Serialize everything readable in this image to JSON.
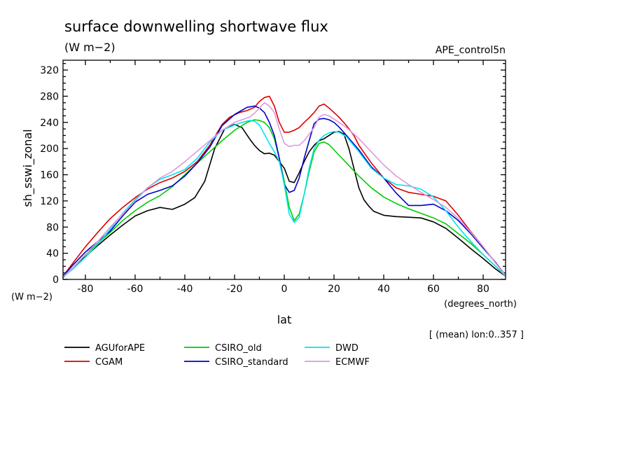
{
  "chart_data": {
    "type": "line",
    "title": "surface downwelling shortwave flux",
    "units": "(W m−2)",
    "run_label": "APE_control5n",
    "ylabel": "sh_sswi_zonal",
    "yunits": "(W m−2)",
    "xlabel": "lat",
    "xunits": "(degrees_north)",
    "note": "[ (mean) lon:0..357 ]",
    "xlim": [
      -89,
      89
    ],
    "ylim": [
      0,
      335
    ],
    "xticks": [
      -80,
      -60,
      -40,
      -20,
      0,
      20,
      40,
      60,
      80
    ],
    "yticks": [
      0,
      40,
      80,
      120,
      160,
      200,
      240,
      280,
      320
    ],
    "series": [
      {
        "name": "AGUforAPE",
        "color": "#000000",
        "x": [
          -89,
          -85,
          -80,
          -75,
          -70,
          -65,
          -60,
          -55,
          -50,
          -45,
          -40,
          -36,
          -32,
          -28,
          -24,
          -20,
          -17,
          -14,
          -12,
          -10,
          -8,
          -6,
          -4,
          -2,
          0,
          2,
          4,
          6,
          8,
          10,
          12,
          14,
          16,
          18,
          20,
          22,
          24,
          26,
          28,
          30,
          32,
          34,
          36,
          40,
          45,
          50,
          55,
          60,
          65,
          70,
          75,
          80,
          85,
          89
        ],
        "y": [
          3,
          18,
          35,
          52,
          68,
          83,
          97,
          105,
          110,
          107,
          115,
          125,
          150,
          200,
          230,
          237,
          232,
          215,
          205,
          197,
          192,
          193,
          190,
          180,
          170,
          150,
          148,
          163,
          180,
          195,
          205,
          212,
          215,
          220,
          225,
          226,
          222,
          200,
          170,
          140,
          122,
          112,
          104,
          98,
          96,
          95,
          94,
          88,
          78,
          63,
          47,
          32,
          16,
          5
        ]
      },
      {
        "name": "CGAM",
        "color": "#dd0000",
        "x": [
          -89,
          -85,
          -80,
          -75,
          -70,
          -65,
          -60,
          -55,
          -50,
          -45,
          -40,
          -35,
          -30,
          -25,
          -22,
          -18,
          -15,
          -12,
          -10,
          -8,
          -6,
          -4,
          -2,
          0,
          2,
          4,
          6,
          8,
          10,
          12,
          14,
          16,
          18,
          20,
          22,
          25,
          28,
          30,
          35,
          40,
          45,
          50,
          55,
          60,
          65,
          70,
          75,
          80,
          85,
          89
        ],
        "y": [
          5,
          25,
          50,
          72,
          93,
          110,
          125,
          138,
          148,
          155,
          165,
          180,
          205,
          237,
          248,
          255,
          258,
          263,
          272,
          278,
          280,
          265,
          240,
          225,
          225,
          228,
          232,
          240,
          247,
          255,
          265,
          268,
          262,
          255,
          248,
          235,
          220,
          205,
          178,
          155,
          140,
          133,
          130,
          127,
          120,
          98,
          73,
          50,
          25,
          6
        ]
      },
      {
        "name": "CSIRO_old",
        "color": "#00cc00",
        "x": [
          -89,
          -85,
          -80,
          -75,
          -70,
          -65,
          -60,
          -55,
          -50,
          -45,
          -40,
          -35,
          -30,
          -25,
          -20,
          -15,
          -12,
          -10,
          -8,
          -6,
          -4,
          -2,
          0,
          2,
          4,
          6,
          8,
          10,
          12,
          14,
          16,
          18,
          20,
          22,
          25,
          30,
          35,
          40,
          45,
          50,
          55,
          60,
          65,
          70,
          75,
          80,
          85,
          89
        ],
        "y": [
          3,
          18,
          38,
          55,
          72,
          90,
          105,
          118,
          128,
          142,
          160,
          178,
          195,
          212,
          228,
          240,
          244,
          243,
          240,
          232,
          215,
          185,
          150,
          110,
          90,
          100,
          130,
          165,
          195,
          208,
          210,
          206,
          198,
          190,
          178,
          158,
          140,
          126,
          116,
          108,
          101,
          94,
          85,
          70,
          55,
          38,
          20,
          5
        ]
      },
      {
        "name": "CSIRO_standard",
        "color": "#0000cc",
        "x": [
          -89,
          -85,
          -80,
          -75,
          -70,
          -65,
          -60,
          -55,
          -50,
          -45,
          -40,
          -35,
          -30,
          -25,
          -20,
          -15,
          -12,
          -10,
          -8,
          -6,
          -4,
          -2,
          0,
          2,
          4,
          6,
          8,
          10,
          12,
          14,
          16,
          18,
          20,
          22,
          25,
          30,
          35,
          40,
          45,
          50,
          55,
          60,
          65,
          70,
          75,
          80,
          85,
          89
        ],
        "y": [
          5,
          22,
          42,
          58,
          74,
          97,
          118,
          130,
          136,
          143,
          158,
          178,
          202,
          235,
          252,
          263,
          265,
          262,
          255,
          240,
          220,
          185,
          145,
          133,
          136,
          155,
          185,
          212,
          238,
          245,
          246,
          244,
          240,
          233,
          220,
          198,
          172,
          155,
          132,
          113,
          113,
          115,
          105,
          90,
          70,
          48,
          26,
          6
        ]
      },
      {
        "name": "DWD",
        "color": "#00e5ee",
        "x": [
          -89,
          -85,
          -80,
          -75,
          -70,
          -65,
          -60,
          -55,
          -50,
          -45,
          -40,
          -35,
          -30,
          -25,
          -20,
          -17,
          -14,
          -12,
          -10,
          -8,
          -6,
          -4,
          -2,
          0,
          2,
          4,
          6,
          8,
          10,
          12,
          14,
          16,
          18,
          20,
          22,
          25,
          30,
          35,
          40,
          45,
          50,
          55,
          60,
          65,
          70,
          75,
          80,
          85,
          89
        ],
        "y": [
          4,
          16,
          34,
          54,
          77,
          101,
          122,
          140,
          153,
          160,
          168,
          185,
          210,
          228,
          236,
          240,
          243,
          242,
          236,
          222,
          208,
          195,
          180,
          145,
          100,
          87,
          95,
          130,
          170,
          200,
          213,
          220,
          224,
          226,
          225,
          218,
          195,
          170,
          155,
          145,
          143,
          138,
          126,
          105,
          80,
          58,
          38,
          20,
          5
        ]
      },
      {
        "name": "ECMWF",
        "color": "#dd99dd",
        "x": [
          -89,
          -85,
          -80,
          -75,
          -70,
          -65,
          -60,
          -55,
          -50,
          -45,
          -40,
          -35,
          -30,
          -25,
          -20,
          -17,
          -14,
          -12,
          -10,
          -8,
          -6,
          -4,
          -2,
          0,
          2,
          4,
          6,
          8,
          10,
          12,
          14,
          16,
          18,
          20,
          22,
          25,
          28,
          30,
          35,
          40,
          45,
          50,
          55,
          60,
          65,
          70,
          75,
          80,
          85,
          89
        ],
        "y": [
          4,
          18,
          38,
          58,
          80,
          100,
          120,
          140,
          155,
          165,
          180,
          196,
          212,
          228,
          240,
          244,
          248,
          254,
          262,
          270,
          265,
          255,
          230,
          208,
          203,
          205,
          205,
          212,
          222,
          232,
          248,
          252,
          250,
          245,
          240,
          232,
          222,
          215,
          195,
          175,
          158,
          145,
          133,
          122,
          110,
          93,
          72,
          50,
          25,
          6
        ]
      }
    ]
  }
}
